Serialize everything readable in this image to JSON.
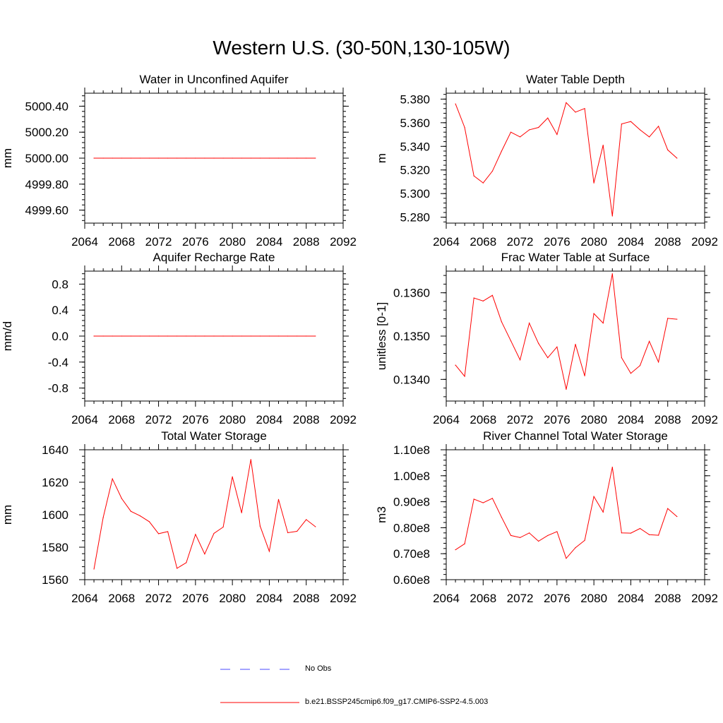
{
  "figure": {
    "title": "Western U.S. (30-50N,130-105W)",
    "line_color": "#ff0000",
    "obs_color": "#4a4aff"
  },
  "legend": {
    "entries": [
      {
        "label": "No Obs",
        "style": "dashed",
        "color": "#4a4aff"
      },
      {
        "label": "b.e21.BSSP245cmip6.f09_g17.CMIP6-SSP2-4.5.003",
        "style": "solid",
        "color": "#ff0000"
      }
    ]
  },
  "chart_data": [
    {
      "type": "line",
      "title": "Water in Unconfined Aquifer",
      "ylabel": "mm",
      "xlabel": "",
      "xlim": [
        2064,
        2092
      ],
      "ylim": [
        4999.5,
        5000.5
      ],
      "xticks": [
        "2064",
        "2068",
        "2072",
        "2076",
        "2080",
        "2084",
        "2088",
        "2092"
      ],
      "yticks": [
        {
          "v": 4999.6,
          "label": "4999.60"
        },
        {
          "v": 4999.8,
          "label": "4999.80"
        },
        {
          "v": 5000.0,
          "label": "5000.00"
        },
        {
          "v": 5000.2,
          "label": "5000.20"
        },
        {
          "v": 5000.4,
          "label": "5000.40"
        }
      ],
      "x": [
        2065,
        2066,
        2067,
        2068,
        2069,
        2070,
        2071,
        2072,
        2073,
        2074,
        2075,
        2076,
        2077,
        2078,
        2079,
        2080,
        2081,
        2082,
        2083,
        2084,
        2085,
        2086,
        2087,
        2088,
        2089
      ],
      "series": [
        {
          "values": [
            5000,
            5000,
            5000,
            5000,
            5000,
            5000,
            5000,
            5000,
            5000,
            5000,
            5000,
            5000,
            5000,
            5000,
            5000,
            5000,
            5000,
            5000,
            5000,
            5000,
            5000,
            5000,
            5000,
            5000,
            5000
          ]
        }
      ]
    },
    {
      "type": "line",
      "title": "Water Table Depth",
      "ylabel": "m",
      "xlabel": "",
      "xlim": [
        2064,
        2092
      ],
      "ylim": [
        5.275,
        5.385
      ],
      "xticks": [
        "2064",
        "2068",
        "2072",
        "2076",
        "2080",
        "2084",
        "2088",
        "2092"
      ],
      "yticks": [
        {
          "v": 5.28,
          "label": "5.280"
        },
        {
          "v": 5.3,
          "label": "5.300"
        },
        {
          "v": 5.32,
          "label": "5.320"
        },
        {
          "v": 5.34,
          "label": "5.340"
        },
        {
          "v": 5.36,
          "label": "5.360"
        },
        {
          "v": 5.38,
          "label": "5.380"
        }
      ],
      "x": [
        2065,
        2066,
        2067,
        2068,
        2069,
        2070,
        2071,
        2072,
        2073,
        2074,
        2075,
        2076,
        2077,
        2078,
        2079,
        2080,
        2081,
        2082,
        2083,
        2084,
        2085,
        2086,
        2087,
        2088,
        2089
      ],
      "series": [
        {
          "values": [
            5.376,
            5.356,
            5.315,
            5.309,
            5.319,
            5.336,
            5.352,
            5.348,
            5.354,
            5.356,
            5.364,
            5.35,
            5.377,
            5.369,
            5.372,
            5.309,
            5.341,
            5.281,
            5.359,
            5.361,
            5.354,
            5.348,
            5.357,
            5.337,
            5.33
          ]
        }
      ]
    },
    {
      "type": "line",
      "title": "Aquifer Recharge Rate",
      "ylabel": "mm/d",
      "xlabel": "",
      "xlim": [
        2064,
        2092
      ],
      "ylim": [
        -1.0,
        1.0
      ],
      "xticks": [
        "2064",
        "2068",
        "2072",
        "2076",
        "2080",
        "2084",
        "2088",
        "2092"
      ],
      "yticks": [
        {
          "v": -0.8,
          "label": "-0.8"
        },
        {
          "v": -0.4,
          "label": "-0.4"
        },
        {
          "v": 0.0,
          "label": "0.0"
        },
        {
          "v": 0.4,
          "label": "0.4"
        },
        {
          "v": 0.8,
          "label": "0.8"
        }
      ],
      "x": [
        2065,
        2066,
        2067,
        2068,
        2069,
        2070,
        2071,
        2072,
        2073,
        2074,
        2075,
        2076,
        2077,
        2078,
        2079,
        2080,
        2081,
        2082,
        2083,
        2084,
        2085,
        2086,
        2087,
        2088,
        2089
      ],
      "series": [
        {
          "values": [
            0,
            0,
            0,
            0,
            0,
            0,
            0,
            0,
            0,
            0,
            0,
            0,
            0,
            0,
            0,
            0,
            0,
            0,
            0,
            0,
            0,
            0,
            0,
            0,
            0
          ]
        }
      ]
    },
    {
      "type": "line",
      "title": "Frac Water Table at Surface",
      "ylabel": "unitless [0-1]",
      "xlabel": "",
      "xlim": [
        2064,
        2092
      ],
      "ylim": [
        0.1335,
        0.1365
      ],
      "xticks": [
        "2064",
        "2068",
        "2072",
        "2076",
        "2080",
        "2084",
        "2088",
        "2092"
      ],
      "yticks": [
        {
          "v": 0.134,
          "label": "0.1340"
        },
        {
          "v": 0.135,
          "label": "0.1350"
        },
        {
          "v": 0.136,
          "label": "0.1360"
        }
      ],
      "x": [
        2065,
        2066,
        2067,
        2068,
        2069,
        2070,
        2071,
        2072,
        2073,
        2074,
        2075,
        2076,
        2077,
        2078,
        2079,
        2080,
        2081,
        2082,
        2083,
        2084,
        2085,
        2086,
        2087,
        2088,
        2089
      ],
      "series": [
        {
          "values": [
            0.13433,
            0.13407,
            0.13588,
            0.13581,
            0.13594,
            0.13533,
            0.13489,
            0.13445,
            0.1353,
            0.13483,
            0.1345,
            0.13475,
            0.13377,
            0.13481,
            0.13408,
            0.13552,
            0.1353,
            0.13644,
            0.1345,
            0.13414,
            0.13432,
            0.13488,
            0.1344,
            0.13541,
            0.13539
          ]
        }
      ]
    },
    {
      "type": "line",
      "title": "Total Water Storage",
      "ylabel": "mm",
      "xlabel": "",
      "xlim": [
        2064,
        2092
      ],
      "ylim": [
        1560,
        1640
      ],
      "xticks": [
        "2064",
        "2068",
        "2072",
        "2076",
        "2080",
        "2084",
        "2088",
        "2092"
      ],
      "yticks": [
        {
          "v": 1560,
          "label": "1560"
        },
        {
          "v": 1580,
          "label": "1580"
        },
        {
          "v": 1600,
          "label": "1600"
        },
        {
          "v": 1620,
          "label": "1620"
        },
        {
          "v": 1640,
          "label": "1640"
        }
      ],
      "x": [
        2065,
        2066,
        2067,
        2068,
        2069,
        2070,
        2071,
        2072,
        2073,
        2074,
        2075,
        2076,
        2077,
        2078,
        2079,
        2080,
        2081,
        2082,
        2083,
        2084,
        2085,
        2086,
        2087,
        2088,
        2089
      ],
      "series": [
        {
          "values": [
            1566.5,
            1598.2,
            1622.1,
            1610.0,
            1602.1,
            1599.3,
            1595.7,
            1588.3,
            1589.6,
            1567.0,
            1570.5,
            1587.9,
            1575.8,
            1588.5,
            1592.4,
            1623.4,
            1601.2,
            1634.0,
            1593.0,
            1577.5,
            1609.4,
            1588.9,
            1589.8,
            1597.0,
            1592.6
          ]
        }
      ]
    },
    {
      "type": "line",
      "title": "River Channel Total Water Storage",
      "ylabel": "m3",
      "xlabel": "",
      "xlim": [
        2064,
        2092
      ],
      "ylim": [
        60000000.0,
        110000000.0
      ],
      "xticks": [
        "2064",
        "2068",
        "2072",
        "2076",
        "2080",
        "2084",
        "2088",
        "2092"
      ],
      "yticks": [
        {
          "v": 60000000.0,
          "label": "0.60e8"
        },
        {
          "v": 70000000.0,
          "label": "0.70e8"
        },
        {
          "v": 80000000.0,
          "label": "0.80e8"
        },
        {
          "v": 90000000.0,
          "label": "0.90e8"
        },
        {
          "v": 100000000.0,
          "label": "1.00e8"
        },
        {
          "v": 110000000.0,
          "label": "1.10e8"
        }
      ],
      "x": [
        2065,
        2066,
        2067,
        2068,
        2069,
        2070,
        2071,
        2072,
        2073,
        2074,
        2075,
        2076,
        2077,
        2078,
        2079,
        2080,
        2081,
        2082,
        2083,
        2084,
        2085,
        2086,
        2087,
        2088,
        2089
      ],
      "series": [
        {
          "values": [
            71500000,
            73800000,
            91000000,
            89600000,
            91300000,
            84000000,
            77000000,
            76200000,
            78000000,
            74800000,
            77000000,
            78500000,
            68200000,
            72300000,
            75100000,
            92000000,
            86000000,
            103300000,
            78000000,
            77900000,
            79700000,
            77300000,
            77100000,
            87400000,
            84300000
          ]
        }
      ]
    }
  ]
}
